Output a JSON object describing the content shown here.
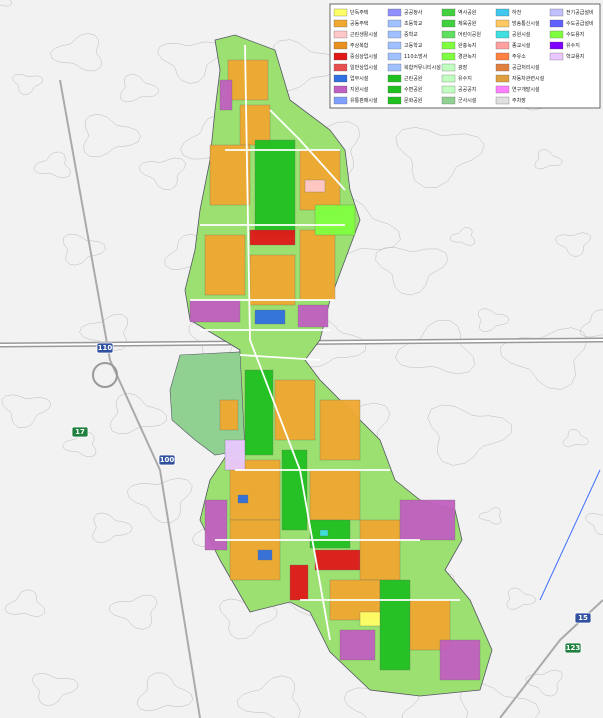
{
  "legend": {
    "items": [
      {
        "label": "단독주택",
        "color": "#ffff66"
      },
      {
        "label": "공동주택",
        "color": "#f0a830"
      },
      {
        "label": "근린생활시설",
        "color": "#ffc8c8"
      },
      {
        "label": "주상복합",
        "color": "#e89020"
      },
      {
        "label": "중심상업시설",
        "color": "#e01818"
      },
      {
        "label": "일반상업시설",
        "color": "#e85050"
      },
      {
        "label": "업무시설",
        "color": "#3070e0"
      },
      {
        "label": "지원시설",
        "color": "#c060c0"
      },
      {
        "label": "유통판매시설",
        "color": "#80a0ff"
      },
      {
        "label": "공공청사",
        "color": "#9090ff"
      },
      {
        "label": "초등학교",
        "color": "#a0c0ff"
      },
      {
        "label": "중학교",
        "color": "#a0c0ff"
      },
      {
        "label": "고등학교",
        "color": "#a0c0ff"
      },
      {
        "label": "110소방서",
        "color": "#a0c0ff"
      },
      {
        "label": "복합커뮤니티시설",
        "color": "#a0c0ff"
      },
      {
        "label": "근린공원",
        "color": "#20c020"
      },
      {
        "label": "수변공원",
        "color": "#20c020"
      },
      {
        "label": "문화공원",
        "color": "#20c020"
      },
      {
        "label": "역사공원",
        "color": "#40d040"
      },
      {
        "label": "체육공원",
        "color": "#40d040"
      },
      {
        "label": "어린이공원",
        "color": "#60e060"
      },
      {
        "label": "완충녹지",
        "color": "#80ff40"
      },
      {
        "label": "경관녹지",
        "color": "#80ff40"
      },
      {
        "label": "광장",
        "color": "#c0ffc0"
      },
      {
        "label": "유수지",
        "color": "#c0ffc0"
      },
      {
        "label": "공공공지",
        "color": "#c0ffc0"
      },
      {
        "label": "군사시설",
        "color": "#90d090"
      },
      {
        "label": "하천",
        "color": "#40c8f0"
      },
      {
        "label": "방송통신시설",
        "color": "#ffc860"
      },
      {
        "label": "공원시설",
        "color": "#40e0e0"
      },
      {
        "label": "종교시설",
        "color": "#ffa0a0"
      },
      {
        "label": "주유소",
        "color": "#ff8040"
      },
      {
        "label": "공급처리시설",
        "color": "#e08040"
      },
      {
        "label": "자동차관련시설",
        "color": "#e0a040"
      },
      {
        "label": "연구개발시설",
        "color": "#ff80ff"
      },
      {
        "label": "주차장",
        "color": "#e0e0e0"
      },
      {
        "label": "전기공급설비",
        "color": "#c0c0ff"
      },
      {
        "label": "수도공급설비",
        "color": "#6060ff"
      },
      {
        "label": "수도용지",
        "color": "#80ff40"
      },
      {
        "label": "유수지",
        "color": "#8000ff"
      },
      {
        "label": "학교용지",
        "color": "#e8c8ff"
      }
    ]
  },
  "road_shields": [
    {
      "label": "110"
    },
    {
      "label": "100"
    },
    {
      "label": "15"
    },
    {
      "label": "17"
    },
    {
      "label": "123"
    }
  ]
}
